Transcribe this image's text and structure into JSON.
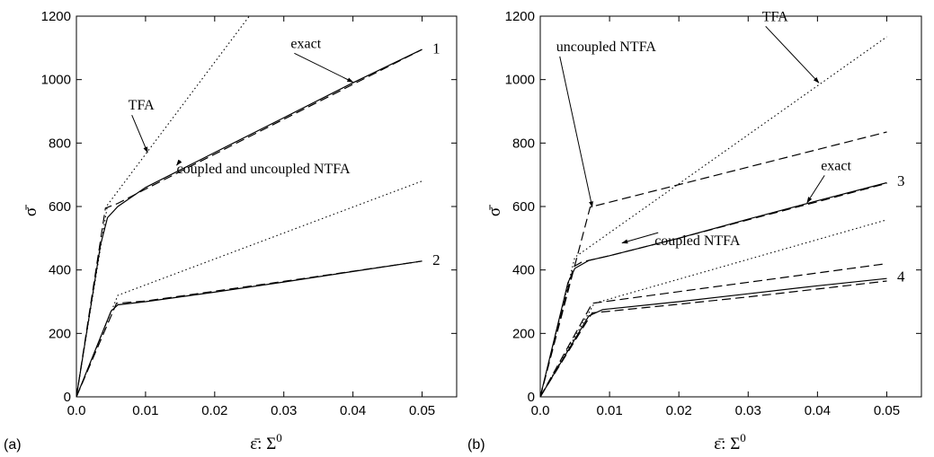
{
  "chart_data": [
    {
      "type": "line",
      "panel_label": "(a)",
      "xlabel": "ε̄: Σ",
      "xlabel_sup": "0",
      "ylabel": "σ̄",
      "xlim": [
        0,
        0.055
      ],
      "ylim": [
        0,
        1200
      ],
      "xticks": [
        0.0,
        0.01,
        0.02,
        0.03,
        0.04,
        0.05
      ],
      "xtick_labels": [
        "0.0",
        "0.01",
        "0.02",
        "0.03",
        "0.04",
        "0.05"
      ],
      "yticks": [
        0,
        200,
        400,
        600,
        800,
        1000,
        1200
      ],
      "ytick_labels": [
        "0",
        "200",
        "400",
        "600",
        "800",
        "1000",
        "1200"
      ],
      "series": [
        {
          "style": "solid",
          "x": [
            0,
            0.0035,
            0.0045,
            0.006,
            0.01,
            0.02,
            0.03,
            0.04,
            0.05
          ],
          "y": [
            0,
            480,
            565,
            600,
            660,
            770,
            880,
            990,
            1095
          ]
        },
        {
          "style": "dashed",
          "x": [
            0,
            0.0042,
            0.006,
            0.01,
            0.02,
            0.03,
            0.04,
            0.05
          ],
          "y": [
            0,
            595,
            610,
            655,
            765,
            875,
            985,
            1095
          ]
        },
        {
          "style": "dotted",
          "x": [
            0,
            0.0045,
            0.025
          ],
          "y": [
            0,
            605,
            1200
          ]
        },
        {
          "style": "solid",
          "x": [
            0,
            0.005,
            0.006,
            0.01,
            0.02,
            0.03,
            0.04,
            0.05
          ],
          "y": [
            0,
            270,
            290,
            300,
            330,
            362,
            395,
            428
          ]
        },
        {
          "style": "dashed",
          "x": [
            0,
            0.0058,
            0.01,
            0.02,
            0.03,
            0.04,
            0.05
          ],
          "y": [
            0,
            295,
            302,
            333,
            364,
            396,
            428
          ]
        },
        {
          "style": "dotted",
          "x": [
            0,
            0.006,
            0.05
          ],
          "y": [
            0,
            320,
            680
          ]
        }
      ],
      "curve_labels": [
        {
          "text": "1",
          "x": 0.0515,
          "y": 1100
        },
        {
          "text": "2",
          "x": 0.0515,
          "y": 433
        }
      ],
      "annotations": [
        {
          "text": "exact",
          "x": 0.031,
          "y": 1100,
          "arrow_to": [
            0.04,
            992
          ]
        },
        {
          "text": "TFA",
          "x": 0.0075,
          "y": 905,
          "arrow_to": [
            0.0103,
            770
          ]
        },
        {
          "text": "coupled and uncoupled NTFA",
          "x": 0.0145,
          "y": 705,
          "arrow_to": [
            0.0145,
            730
          ]
        }
      ]
    },
    {
      "type": "line",
      "panel_label": "(b)",
      "xlabel": "ε̄: Σ",
      "xlabel_sup": "0",
      "ylabel": "σ̄",
      "xlim": [
        0,
        0.055
      ],
      "ylim": [
        0,
        1200
      ],
      "xticks": [
        0.0,
        0.01,
        0.02,
        0.03,
        0.04,
        0.05
      ],
      "xtick_labels": [
        "0.0",
        "0.01",
        "0.02",
        "0.03",
        "0.04",
        "0.05"
      ],
      "yticks": [
        0,
        200,
        400,
        600,
        800,
        1000,
        1200
      ],
      "ytick_labels": [
        "0",
        "200",
        "400",
        "600",
        "800",
        "1000",
        "1200"
      ],
      "series": [
        {
          "style": "solid",
          "x": [
            0,
            0.004,
            0.005,
            0.007,
            0.01,
            0.02,
            0.03,
            0.04,
            0.05
          ],
          "y": [
            0,
            360,
            405,
            430,
            445,
            500,
            560,
            618,
            675
          ]
        },
        {
          "style": "dashed",
          "x": [
            0,
            0.0048,
            0.006,
            0.01,
            0.02,
            0.03,
            0.04,
            0.05
          ],
          "y": [
            0,
            410,
            425,
            445,
            500,
            558,
            615,
            673
          ]
        },
        {
          "style": "dashed",
          "x": [
            0,
            0.0072,
            0.05
          ],
          "y": [
            0,
            598,
            835
          ]
        },
        {
          "style": "dotted",
          "x": [
            0,
            0.005,
            0.05
          ],
          "y": [
            0,
            440,
            1135
          ]
        },
        {
          "style": "solid",
          "x": [
            0,
            0.007,
            0.009,
            0.02,
            0.03,
            0.04,
            0.05
          ],
          "y": [
            0,
            255,
            275,
            300,
            325,
            350,
            373
          ]
        },
        {
          "style": "dashed",
          "x": [
            0,
            0.0075,
            0.01,
            0.02,
            0.03,
            0.04,
            0.05
          ],
          "y": [
            0,
            265,
            270,
            292,
            315,
            340,
            365
          ]
        },
        {
          "style": "dashed",
          "x": [
            0,
            0.0075,
            0.05
          ],
          "y": [
            0,
            295,
            420
          ]
        },
        {
          "style": "dotted",
          "x": [
            0,
            0.0078,
            0.05
          ],
          "y": [
            0,
            295,
            558
          ]
        }
      ],
      "curve_labels": [
        {
          "text": "3",
          "x": 0.0515,
          "y": 682
        },
        {
          "text": "4",
          "x": 0.0515,
          "y": 380
        }
      ],
      "annotations": [
        {
          "text": "TFA",
          "x": 0.032,
          "y": 1185,
          "arrow_to": [
            0.0402,
            990
          ]
        },
        {
          "text": "uncoupled NTFA",
          "x": 0.0023,
          "y": 1090,
          "arrow_to": [
            0.0075,
            598
          ]
        },
        {
          "text": "exact",
          "x": 0.0405,
          "y": 715,
          "arrow_to": [
            0.0385,
            612
          ]
        },
        {
          "text": "coupled NTFA",
          "x": 0.0165,
          "y": 478,
          "arrow_to": [
            0.0118,
            485
          ]
        }
      ]
    }
  ]
}
